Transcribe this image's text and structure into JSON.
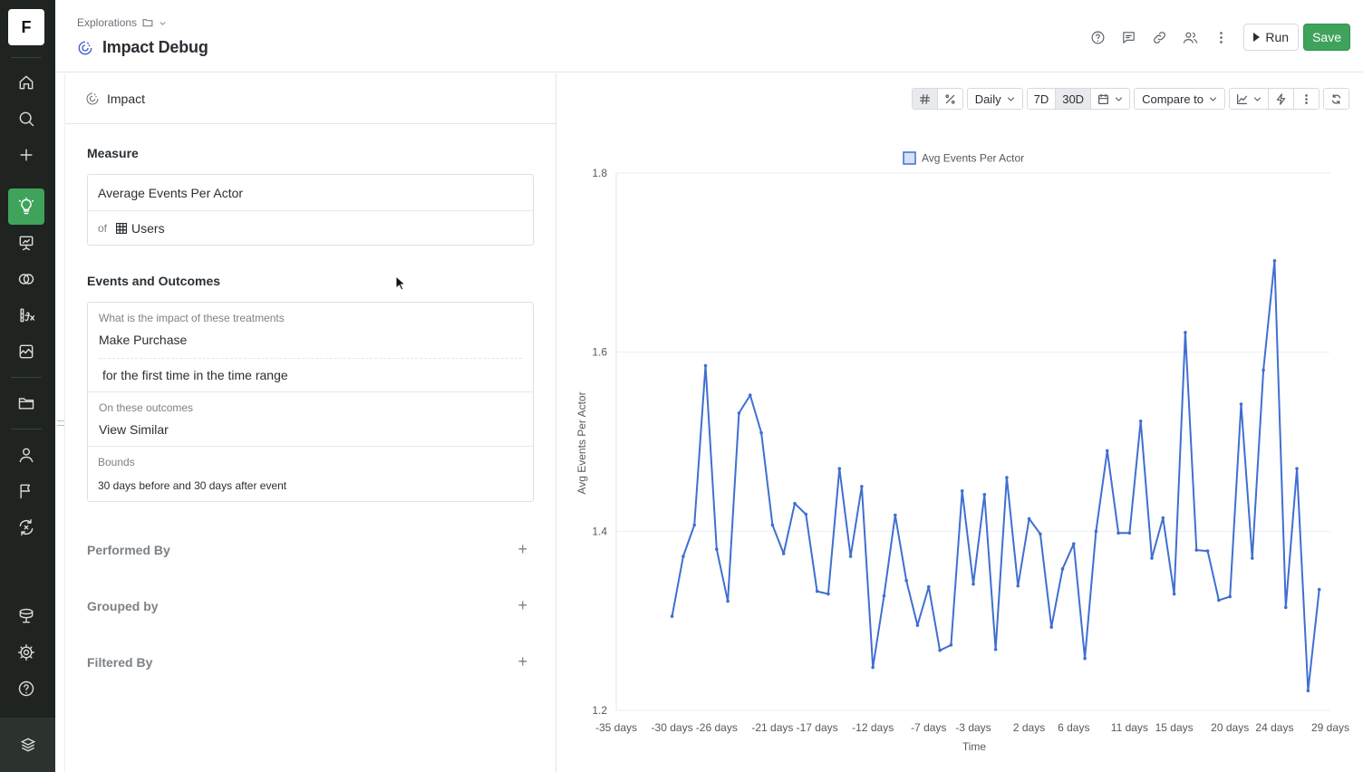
{
  "app": {
    "logo_letter": "F"
  },
  "header": {
    "breadcrumb": "Explorations",
    "title": "Impact Debug",
    "run_label": "Run",
    "save_label": "Save"
  },
  "panel": {
    "head_label": "Impact",
    "measure_title": "Measure",
    "measure_value": "Average Events Per Actor",
    "measure_of_prefix": "of",
    "measure_of_value": "Users",
    "events_title": "Events and Outcomes",
    "treatments_label": "What is the impact of these treatments",
    "treatment_event": "Make Purchase",
    "treatment_qualifier": "for the first time in the time range",
    "outcomes_label": "On these outcomes",
    "outcome_event": "View Similar",
    "bounds_label": "Bounds",
    "bounds_value": "30 days before and 30 days after event",
    "performed_by": "Performed By",
    "grouped_by": "Grouped by",
    "filtered_by": "Filtered By",
    "plus_symbol": "+"
  },
  "toolbar": {
    "interval": "Daily",
    "range_7d": "7D",
    "range_30d": "30D",
    "compare": "Compare to"
  },
  "colors": {
    "accent_green": "#3fa35b",
    "series_blue": "#3f6fd1",
    "rail_bg": "#1f2421"
  },
  "chart_data": {
    "type": "line",
    "legend": "Avg Events Per Actor",
    "legend_position": "top-center",
    "xlabel": "Time",
    "ylabel": "Avg Events Per Actor",
    "ylim": [
      1.2,
      1.8
    ],
    "yticks": [
      1.2,
      1.4,
      1.6,
      1.8
    ],
    "xlim": [
      -35,
      29
    ],
    "xticks": [
      {
        "v": -35,
        "label": "-35 days"
      },
      {
        "v": -30,
        "label": "-30 days"
      },
      {
        "v": -26,
        "label": "-26 days"
      },
      {
        "v": -21,
        "label": "-21 days"
      },
      {
        "v": -17,
        "label": "-17 days"
      },
      {
        "v": -12,
        "label": "-12 days"
      },
      {
        "v": -7,
        "label": "-7 days"
      },
      {
        "v": -3,
        "label": "-3 days"
      },
      {
        "v": 2,
        "label": "2 days"
      },
      {
        "v": 6,
        "label": "6 days"
      },
      {
        "v": 11,
        "label": "11 days"
      },
      {
        "v": 15,
        "label": "15 days"
      },
      {
        "v": 20,
        "label": "20 days"
      },
      {
        "v": 24,
        "label": "24 days"
      },
      {
        "v": 29,
        "label": "29 days"
      }
    ],
    "grid": true,
    "series": [
      {
        "name": "Avg Events Per Actor",
        "x": [
          -30,
          -29,
          -28,
          -27,
          -26,
          -25,
          -24,
          -23,
          -22,
          -21,
          -20,
          -19,
          -18,
          -17,
          -16,
          -15,
          -14,
          -13,
          -12,
          -11,
          -10,
          -9,
          -8,
          -7,
          -6,
          -5,
          -4,
          -3,
          -2,
          -1,
          0,
          1,
          2,
          3,
          4,
          5,
          6,
          7,
          8,
          9,
          10,
          11,
          12,
          13,
          14,
          15,
          16,
          17,
          18,
          19,
          20,
          21,
          22,
          23,
          24,
          25,
          26,
          27,
          28
        ],
        "values": [
          1.305,
          1.372,
          1.407,
          1.585,
          1.38,
          1.322,
          1.532,
          1.552,
          1.51,
          1.407,
          1.375,
          1.431,
          1.419,
          1.333,
          1.33,
          1.47,
          1.372,
          1.45,
          1.248,
          1.328,
          1.418,
          1.345,
          1.295,
          1.338,
          1.267,
          1.273,
          1.445,
          1.341,
          1.441,
          1.268,
          1.46,
          1.339,
          1.414,
          1.397,
          1.293,
          1.358,
          1.386,
          1.258,
          1.4,
          1.49,
          1.398,
          1.398,
          1.523,
          1.37,
          1.415,
          1.33,
          1.622,
          1.379,
          1.378,
          1.323,
          1.327,
          1.542,
          1.37,
          1.58,
          1.702,
          1.315,
          1.47,
          1.222,
          1.335
        ]
      }
    ]
  }
}
